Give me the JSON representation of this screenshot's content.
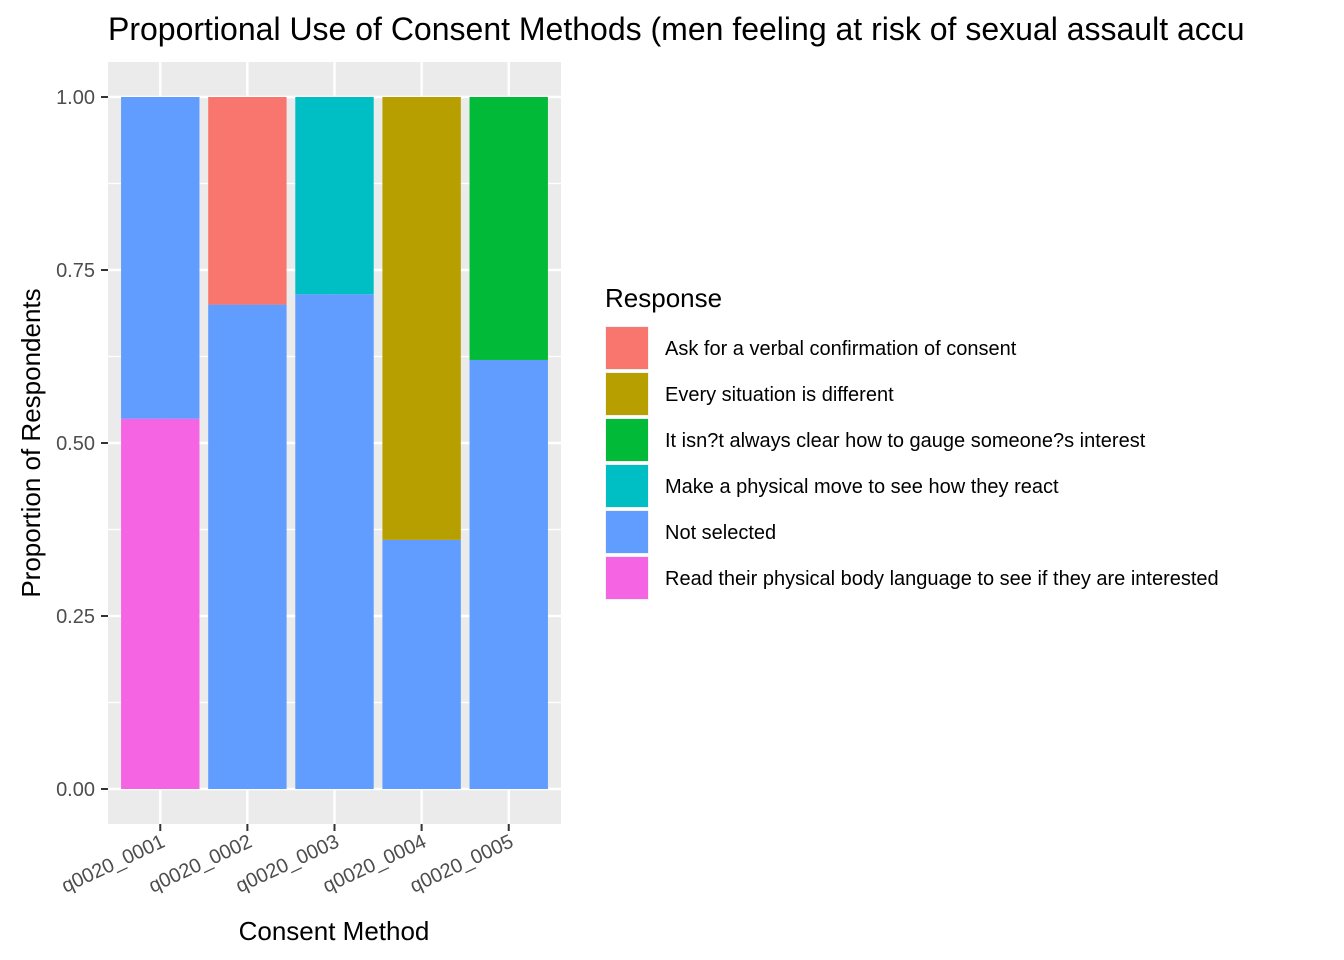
{
  "chart_data": {
    "type": "bar",
    "stacked": true,
    "title": "Proportional Use of Consent Methods (men feeling at risk of sexual assault accu",
    "xlabel": "Consent Method",
    "ylabel": "Proportion of Respondents",
    "ylim": [
      0,
      1
    ],
    "yticks": [
      "0.00",
      "0.25",
      "0.50",
      "0.75",
      "1.00"
    ],
    "categories": [
      "q0020_0001",
      "q0020_0002",
      "q0020_0003",
      "q0020_0004",
      "q0020_0005"
    ],
    "legend": {
      "title": "Response",
      "placement": "right"
    },
    "series": [
      {
        "name": "Ask for a verbal confirmation of consent",
        "color": "#F8766D",
        "values": [
          0,
          0.3,
          0,
          0,
          0
        ]
      },
      {
        "name": "Every situation is different",
        "color": "#B79F00",
        "values": [
          0,
          0,
          0,
          0.64,
          0
        ]
      },
      {
        "name": "It isn?t always clear how to gauge someone?s interest",
        "color": "#00BA38",
        "values": [
          0,
          0,
          0,
          0,
          0.38
        ]
      },
      {
        "name": "Make a physical move to see how they react",
        "color": "#00BFC4",
        "values": [
          0,
          0,
          0.285,
          0,
          0
        ]
      },
      {
        "name": "Not selected",
        "color": "#619CFF",
        "values": [
          0.465,
          0.7,
          0.715,
          0.36,
          0.62
        ]
      },
      {
        "name": "Read their physical body language to see if they are interested",
        "color": "#F564E3",
        "values": [
          0.535,
          0,
          0,
          0,
          0
        ]
      }
    ],
    "grid": true,
    "panel_background": "#EBEBEB",
    "grid_color": "#FFFFFF"
  }
}
